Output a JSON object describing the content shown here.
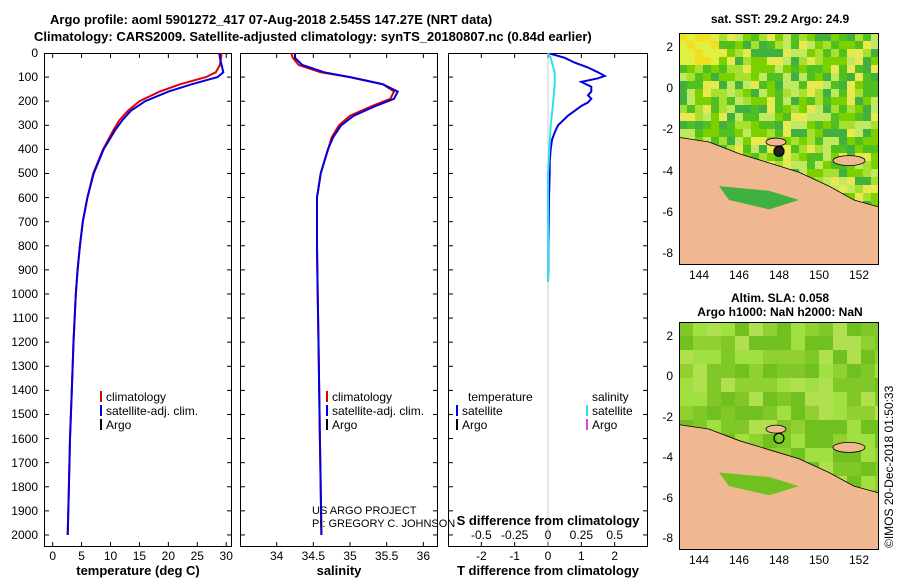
{
  "header": {
    "line1": "Argo profile: aoml 5901272_417 07-Aug-2018 2.545S 147.27E (NRT data)",
    "line2": "Climatology: CARS2009. Satellite-adjusted climatology: synTS_20180807.nc (0.84d earlier)"
  },
  "colors": {
    "climatology": "#e00000",
    "satellite": "#0000e0",
    "argo": "#000000",
    "sal_satellite": "#30e0f0",
    "sal_argo": "#e040e0"
  },
  "depth_ticks": [
    "0",
    "100",
    "200",
    "300",
    "400",
    "500",
    "600",
    "700",
    "800",
    "900",
    "1000",
    "1100",
    "1200",
    "1300",
    "1400",
    "1500",
    "1600",
    "1700",
    "1800",
    "1900",
    "2000"
  ],
  "chart_data": [
    {
      "type": "line",
      "name": "temperature",
      "xlabel": "temperature (deg C)",
      "ylabel": "depth",
      "xlim": [
        -1.5,
        31
      ],
      "ylim": [
        2050,
        0
      ],
      "xticks": [
        0,
        5,
        10,
        15,
        20,
        25,
        30
      ],
      "xtick_labels": [
        "0",
        "5",
        "10",
        "15",
        "20",
        "25",
        "30"
      ],
      "legend": [
        "climatology",
        "satellite-adj. clim.",
        "Argo"
      ],
      "series": [
        {
          "name": "climatology",
          "color": "#e00000",
          "depth": [
            0,
            20,
            50,
            80,
            100,
            130,
            160,
            200,
            240,
            280,
            320,
            400,
            500,
            600,
            700,
            800,
            900,
            1000,
            1200,
            1400,
            1600,
            1800,
            2000
          ],
          "values": [
            29.2,
            29.1,
            28.9,
            28.2,
            26.5,
            22,
            18.5,
            15,
            13,
            11.5,
            10.5,
            8.7,
            7.0,
            6.0,
            5.2,
            4.7,
            4.3,
            4.0,
            3.6,
            3.3,
            3.0,
            2.8,
            2.6
          ]
        },
        {
          "name": "satellite-adj. clim.",
          "color": "#0000e0",
          "depth": [
            0,
            20,
            50,
            80,
            100,
            130,
            160,
            200,
            240,
            280,
            320,
            400,
            500,
            600,
            700,
            800,
            900,
            1000,
            1200,
            1400,
            1600,
            1800,
            2000
          ],
          "values": [
            28.8,
            28.9,
            29.2,
            29.5,
            28.5,
            24,
            20,
            16,
            13.5,
            12,
            10.8,
            8.8,
            7.1,
            6.0,
            5.2,
            4.7,
            4.3,
            4.0,
            3.6,
            3.3,
            3.0,
            2.8,
            2.6
          ]
        }
      ]
    },
    {
      "type": "line",
      "name": "salinity",
      "xlabel": "salinity",
      "ylabel": "depth",
      "xlim": [
        33.5,
        36.2
      ],
      "ylim": [
        2050,
        0
      ],
      "xticks": [
        34,
        34.5,
        35,
        35.5,
        36
      ],
      "xtick_labels": [
        "34",
        "34.5",
        "35",
        "35.5",
        "36"
      ],
      "legend": [
        "climatology",
        "satellite-adj. clim.",
        "Argo"
      ],
      "series": [
        {
          "name": "climatology",
          "color": "#e00000",
          "depth": [
            0,
            20,
            50,
            80,
            100,
            130,
            160,
            190,
            220,
            260,
            300,
            350,
            400,
            450,
            500,
            600,
            700,
            800,
            1000,
            1200,
            1400,
            1600,
            1800,
            2000
          ],
          "values": [
            34.2,
            34.22,
            34.3,
            34.6,
            35.0,
            35.45,
            35.6,
            35.55,
            35.3,
            35.0,
            34.85,
            34.75,
            34.7,
            34.65,
            34.6,
            34.55,
            34.55,
            34.55,
            34.56,
            34.57,
            34.58,
            34.59,
            34.6,
            34.61
          ]
        },
        {
          "name": "satellite-adj. clim.",
          "color": "#0000e0",
          "depth": [
            0,
            20,
            50,
            80,
            100,
            130,
            160,
            190,
            220,
            260,
            300,
            350,
            400,
            450,
            500,
            600,
            700,
            800,
            1000,
            1200,
            1400,
            1600,
            1800,
            2000
          ],
          "values": [
            34.25,
            34.25,
            34.35,
            34.65,
            35.0,
            35.45,
            35.65,
            35.6,
            35.35,
            35.05,
            34.88,
            34.77,
            34.7,
            34.65,
            34.6,
            34.55,
            34.55,
            34.55,
            34.56,
            34.57,
            34.58,
            34.59,
            34.6,
            34.61
          ]
        }
      ]
    },
    {
      "type": "line",
      "name": "difference",
      "xlabel": "T difference from climatology",
      "xlabel_top": "S difference from climatology",
      "ylabel": "depth",
      "xlim": [
        -3,
        3
      ],
      "ylim": [
        2050,
        0
      ],
      "xticks": [
        -2,
        -1,
        0,
        1,
        2
      ],
      "xtick_labels": [
        "-2",
        "-1",
        "0",
        "1",
        "2"
      ],
      "xticks_top": [
        -0.5,
        -0.25,
        0,
        0.25,
        0.5
      ],
      "xtick_labels_top": [
        "-0.5",
        "-0.25",
        "0",
        "0.25",
        "0.5"
      ],
      "legend_left_title": "temperature",
      "legend_right_title": "salinity",
      "legend_left": [
        "satellite",
        "Argo"
      ],
      "legend_right": [
        "satellite",
        "Argo"
      ],
      "series": [
        {
          "name": "temperature satellite",
          "color": "#0000e0",
          "depth": [
            0,
            20,
            40,
            60,
            80,
            95,
            105,
            120,
            140,
            160,
            175,
            190,
            205,
            220,
            240,
            260,
            280,
            300,
            330,
            360,
            400,
            450,
            500,
            600,
            700,
            800,
            900,
            950
          ],
          "values": [
            0,
            0.5,
            0.8,
            1.2,
            1.5,
            1.7,
            1.5,
            1.0,
            1.3,
            1.3,
            1.2,
            1.3,
            1.2,
            1.0,
            0.8,
            0.6,
            0.45,
            0.3,
            0.2,
            0.12,
            0.08,
            0.05,
            0.05,
            0.03,
            0.02,
            0.01,
            0.01,
            0
          ]
        },
        {
          "name": "salinity satellite",
          "color": "#30e0f0",
          "depth": [
            0,
            20,
            40,
            60,
            80,
            100,
            130,
            160,
            200,
            250,
            300,
            350,
            400,
            450,
            500,
            600,
            700,
            800,
            900,
            950
          ],
          "values": [
            0,
            0.02,
            0.03,
            0.04,
            0.05,
            0.05,
            0.05,
            0.045,
            0.04,
            0.03,
            0.02,
            0.015,
            0.01,
            0.005,
            0,
            0,
            0,
            0,
            0,
            0
          ]
        }
      ]
    }
  ],
  "maps": {
    "sst": {
      "title": "sat. SST: 29.2 Argo: 24.9",
      "xticks": [
        "144",
        "146",
        "148",
        "150",
        "152"
      ],
      "yticks": [
        "2",
        "0",
        "-2",
        "-4",
        "-6",
        "-8"
      ]
    },
    "sla": {
      "title1": "Altim. SLA: 0.058",
      "title2": "Argo h1000: NaN h2000: NaN",
      "xticks": [
        "144",
        "146",
        "148",
        "150",
        "152"
      ],
      "yticks": [
        "2",
        "0",
        "-2",
        "-4",
        "-6",
        "-8"
      ]
    }
  },
  "credits": {
    "line1": "US ARGO PROJECT",
    "line2": "PI: GREGORY C. JOHNSON",
    "imos": "©IMOS 20-Dec-2018 01:50:33"
  }
}
